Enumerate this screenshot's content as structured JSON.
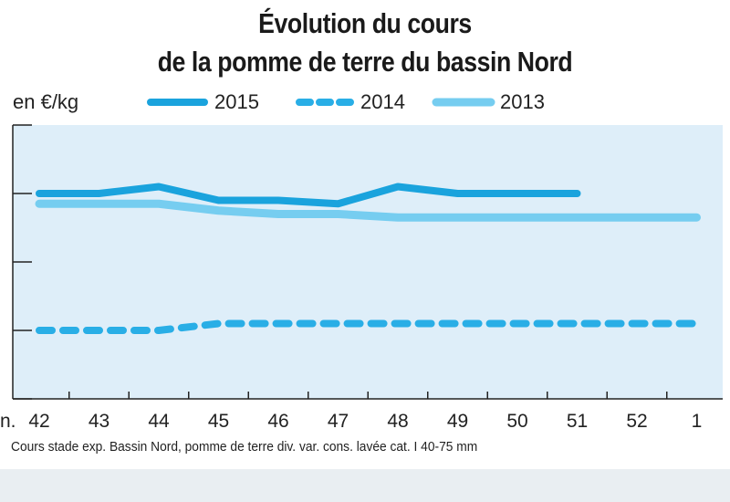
{
  "title_line1": "Évolution du cours",
  "title_line2": "de la pomme de terre du bassin Nord",
  "unit_label": "en €/kg",
  "source_note": "Cours stade exp. Bassin Nord, pomme de terre div. var. cons. lavée cat. I 40-75 mm",
  "colors": {
    "plot_bg": "#deeef9",
    "series_2015": "#1aa3dd",
    "series_2014": "#29aee6",
    "series_2013": "#76cdf0",
    "axis": "#222222"
  },
  "chart_data": {
    "type": "line",
    "x_prefix": "n.",
    "categories": [
      "42",
      "43",
      "44",
      "45",
      "46",
      "47",
      "48",
      "49",
      "50",
      "51",
      "52",
      "1"
    ],
    "series": [
      {
        "name": "2015",
        "style": "solid-thick",
        "values": [
          0.3,
          0.3,
          0.31,
          0.29,
          0.29,
          0.285,
          0.31,
          0.3,
          0.3,
          0.3,
          null,
          null
        ]
      },
      {
        "name": "2014",
        "style": "dashed",
        "values": [
          0.1,
          0.1,
          0.1,
          0.11,
          0.11,
          0.11,
          0.11,
          0.11,
          0.11,
          0.11,
          0.11,
          0.11
        ]
      },
      {
        "name": "2013",
        "style": "solid-light",
        "values": [
          0.285,
          0.285,
          0.285,
          0.275,
          0.27,
          0.27,
          0.265,
          0.265,
          0.265,
          0.265,
          0.265,
          0.265
        ]
      }
    ],
    "ylim": [
      0,
      0.4
    ],
    "y_ticks": [
      0,
      0.1,
      0.2,
      0.3,
      0.4
    ],
    "y_tick_labels_shown": false,
    "grid": false,
    "legend_position": "top"
  }
}
